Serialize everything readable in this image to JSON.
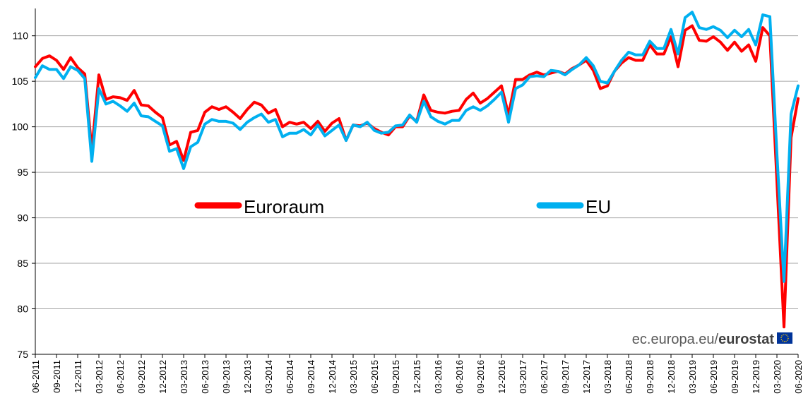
{
  "chart_data": {
    "type": "line",
    "x_tick_labels": [
      "06-2011",
      "09-2011",
      "12-2011",
      "03-2012",
      "06-2012",
      "09-2012",
      "12-2012",
      "03-2013",
      "06-2013",
      "09-2013",
      "12-2013",
      "03-2014",
      "06-2014",
      "09-2014",
      "12-2014",
      "03-2015",
      "06-2015",
      "09-2015",
      "12-2015",
      "03-2016",
      "06-2016",
      "09-2016",
      "12-2016",
      "03-2017",
      "06-2017",
      "09-2017",
      "12-2017",
      "03-2018",
      "06-2018",
      "09-2018",
      "12-2018",
      "03-2019",
      "06-2019",
      "09-2019",
      "12-2019",
      "03-2020",
      "06-2020"
    ],
    "x_start": "06-2011",
    "x_end": "06-2020",
    "ylim": [
      75,
      113
    ],
    "yticks": [
      75,
      80,
      85,
      90,
      95,
      100,
      105,
      110
    ],
    "grid": "horizontal",
    "legend_position": "center",
    "series": [
      {
        "name": "Euroraum",
        "color": "#ff0000",
        "values": [
          106.6,
          107.5,
          107.8,
          107.3,
          106.3,
          107.6,
          106.5,
          105.8,
          97.4,
          105.7,
          103.0,
          103.3,
          103.2,
          102.9,
          104.0,
          102.4,
          102.3,
          101.6,
          101.0,
          98.0,
          98.4,
          96.3,
          99.4,
          99.6,
          101.6,
          102.2,
          101.9,
          102.2,
          101.6,
          100.9,
          101.9,
          102.7,
          102.4,
          101.5,
          101.9,
          100.0,
          100.5,
          100.3,
          100.5,
          99.8,
          100.6,
          99.5,
          100.4,
          100.9,
          98.5,
          100.2,
          100.1,
          100.4,
          99.8,
          99.4,
          99.1,
          100.0,
          100.0,
          101.2,
          100.6,
          103.5,
          101.8,
          101.6,
          101.5,
          101.7,
          101.8,
          103.0,
          103.7,
          102.6,
          103.1,
          103.8,
          104.5,
          101.3,
          105.2,
          105.2,
          105.7,
          106.0,
          105.7,
          105.9,
          106.1,
          105.8,
          106.4,
          106.8,
          107.3,
          106.2,
          104.2,
          104.5,
          106.1,
          107.0,
          107.6,
          107.3,
          107.3,
          109.0,
          108.0,
          108.0,
          109.9,
          106.6,
          110.6,
          111.1,
          109.5,
          109.4,
          109.9,
          109.3,
          108.4,
          109.3,
          108.3,
          109.0,
          107.2,
          110.9,
          110.0,
          94.0,
          78.0,
          98.8,
          103.1
        ]
      },
      {
        "name": "EU",
        "color": "#00b0f0",
        "values": [
          105.4,
          106.7,
          106.3,
          106.3,
          105.3,
          106.6,
          106.2,
          105.3,
          96.2,
          104.2,
          102.5,
          102.8,
          102.3,
          101.7,
          102.6,
          101.2,
          101.1,
          100.6,
          100.1,
          97.3,
          97.6,
          95.4,
          97.8,
          98.3,
          100.3,
          100.8,
          100.6,
          100.6,
          100.4,
          99.7,
          100.5,
          101.0,
          101.4,
          100.5,
          100.8,
          98.9,
          99.3,
          99.3,
          99.7,
          99.1,
          100.2,
          99.0,
          99.6,
          100.2,
          98.5,
          100.2,
          100.0,
          100.5,
          99.6,
          99.3,
          99.4,
          100.1,
          100.2,
          101.3,
          100.5,
          102.8,
          101.1,
          100.6,
          100.3,
          100.7,
          100.7,
          101.8,
          102.2,
          101.8,
          102.3,
          103.0,
          103.8,
          100.5,
          104.2,
          104.6,
          105.5,
          105.6,
          105.5,
          106.2,
          106.1,
          105.7,
          106.3,
          106.8,
          107.6,
          106.7,
          105.0,
          104.8,
          106.1,
          107.3,
          108.2,
          107.9,
          107.9,
          109.4,
          108.6,
          108.6,
          110.7,
          108.0,
          112.0,
          112.6,
          110.9,
          110.7,
          111.0,
          110.6,
          109.8,
          110.6,
          109.9,
          110.7,
          109.0,
          112.3,
          112.1,
          97.0,
          83.0,
          101.4,
          104.5
        ]
      }
    ]
  },
  "watermark": {
    "site": "ec.europa.eu/",
    "brand": "eurostat"
  }
}
